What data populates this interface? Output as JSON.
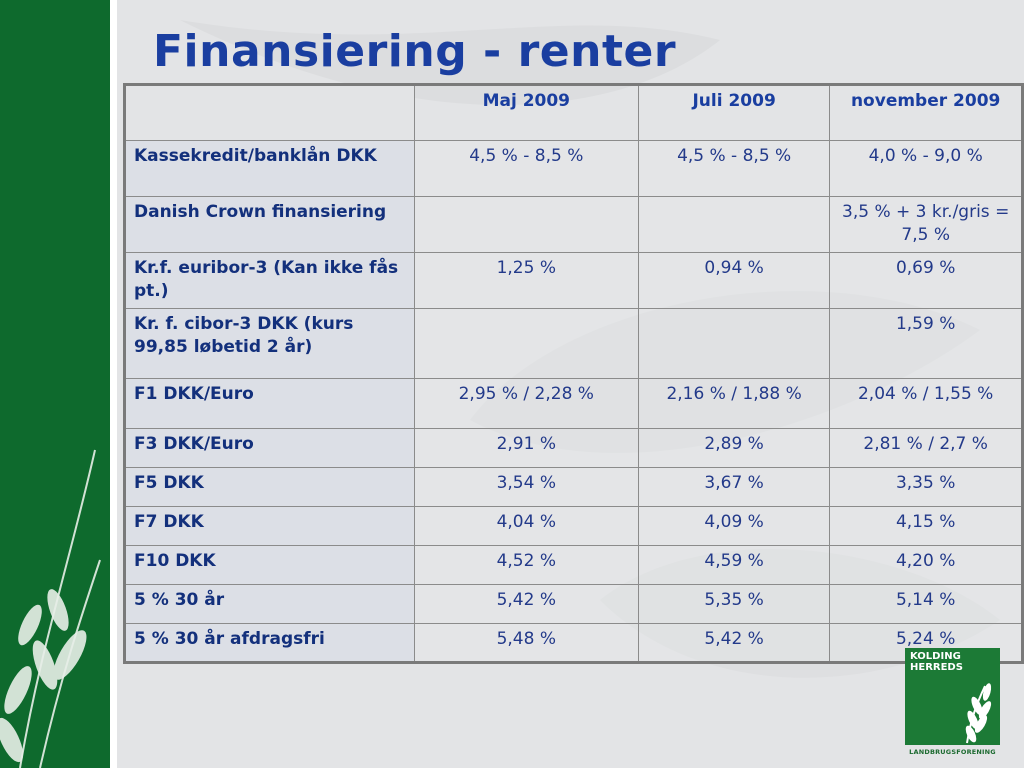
{
  "slide": {
    "title": "Finansiering - renter"
  },
  "table": {
    "headers": [
      "",
      "Maj 2009",
      "Juli 2009",
      "november 2009"
    ],
    "rows": [
      {
        "label": "Kassekredit/banklån DKK",
        "values": [
          "4,5 % - 8,5 %",
          "4,5 % - 8,5 %",
          "4,0 % - 9,0 %"
        ]
      },
      {
        "label": "Danish Crown finansiering",
        "values": [
          "",
          "",
          "3,5 % + 3 kr./gris = 7,5 %"
        ]
      },
      {
        "label": "Kr.f. euribor-3 (Kan ikke fås pt.)",
        "values": [
          "1,25 %",
          "0,94 %",
          "0,69 %"
        ]
      },
      {
        "label": "Kr. f. cibor-3 DKK (kurs 99,85 løbetid 2 år)",
        "values": [
          "",
          "",
          "1,59 %"
        ]
      },
      {
        "label": "F1 DKK/Euro",
        "values": [
          "2,95 % / 2,28 %",
          "2,16 % / 1,88 %",
          "2,04 % / 1,55 %"
        ]
      },
      {
        "label": "F3 DKK/Euro",
        "values": [
          "2,91 %",
          "2,89 %",
          "2,81 % / 2,7 %"
        ]
      },
      {
        "label": "F5 DKK",
        "values": [
          "3,54 %",
          "3,67 %",
          "3,35 %"
        ]
      },
      {
        "label": "F7 DKK",
        "values": [
          "4,04 %",
          "4,09 %",
          "4,15 %"
        ]
      },
      {
        "label": "F10 DKK",
        "values": [
          "4,52 %",
          "4,59 %",
          "4,20 %"
        ]
      },
      {
        "label": "5 % 30 år",
        "values": [
          "5,42 %",
          "5,35 %",
          "5,14 %"
        ]
      },
      {
        "label": "5 % 30 år afdragsfri",
        "values": [
          "5,48 %",
          "5,42 %",
          "5,24 %"
        ]
      }
    ]
  },
  "logo": {
    "line1": "KOLDING",
    "line2": "HERREDS",
    "bottom": "LANDBRUGSFORENING"
  },
  "colors": {
    "title": "#1a3ea0",
    "sidebar_green": "#0e6a2d",
    "logo_green": "#1c7a36"
  }
}
